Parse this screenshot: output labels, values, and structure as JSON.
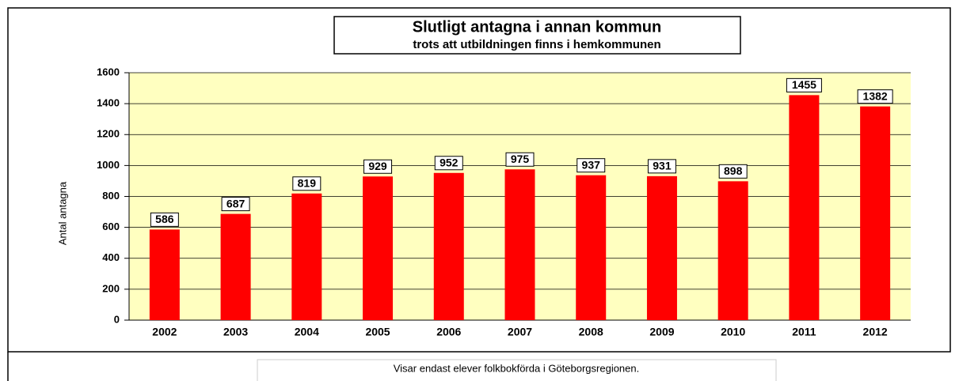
{
  "chart_data": {
    "type": "bar",
    "title": "Slutligt antagna i annan kommun",
    "subtitle": "trots att utbildningen finns i hemkommunen",
    "ylabel": "Antal antagna",
    "note": "Visar endast elever folkbokförda i Göteborgsregionen.",
    "categories": [
      "2002",
      "2003",
      "2004",
      "2005",
      "2006",
      "2007",
      "2008",
      "2009",
      "2010",
      "2011",
      "2012"
    ],
    "values": [
      586,
      687,
      819,
      929,
      952,
      975,
      937,
      931,
      898,
      1455,
      1382
    ],
    "color": "#ff0000",
    "ylim": [
      0,
      1600
    ],
    "yticks": [
      0,
      200,
      400,
      600,
      800,
      1000,
      1200,
      1400,
      1600
    ],
    "grid": true
  }
}
